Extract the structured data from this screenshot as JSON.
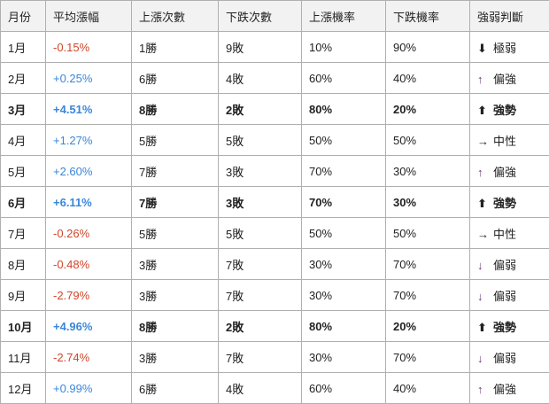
{
  "headers": [
    "月份",
    "平均漲幅",
    "上漲次數",
    "下跌次數",
    "上漲機率",
    "下跌機率",
    "強弱判斷"
  ],
  "colors": {
    "negative": "#d0452a",
    "positive": "#3a87d8",
    "header_bg": "#f2f2f2"
  },
  "rows": [
    {
      "month": "1月",
      "avg": "-0.15%",
      "up": "1勝",
      "down": "9敗",
      "up_rate": "10%",
      "down_rate": "90%",
      "arrow": "⬇",
      "judge": "極弱",
      "bold": false
    },
    {
      "month": "2月",
      "avg": "+0.25%",
      "up": "6勝",
      "down": "4敗",
      "up_rate": "60%",
      "down_rate": "40%",
      "arrow": "↑",
      "judge": "偏強",
      "bold": false
    },
    {
      "month": "3月",
      "avg": "+4.51%",
      "up": "8勝",
      "down": "2敗",
      "up_rate": "80%",
      "down_rate": "20%",
      "arrow": "⬆",
      "judge": "強勢",
      "bold": true
    },
    {
      "month": "4月",
      "avg": "+1.27%",
      "up": "5勝",
      "down": "5敗",
      "up_rate": "50%",
      "down_rate": "50%",
      "arrow": "→",
      "judge": "中性",
      "bold": false
    },
    {
      "month": "5月",
      "avg": "+2.60%",
      "up": "7勝",
      "down": "3敗",
      "up_rate": "70%",
      "down_rate": "30%",
      "arrow": "↑",
      "judge": "偏強",
      "bold": false
    },
    {
      "month": "6月",
      "avg": "+6.11%",
      "up": "7勝",
      "down": "3敗",
      "up_rate": "70%",
      "down_rate": "30%",
      "arrow": "⬆",
      "judge": "強勢",
      "bold": true
    },
    {
      "month": "7月",
      "avg": "-0.26%",
      "up": "5勝",
      "down": "5敗",
      "up_rate": "50%",
      "down_rate": "50%",
      "arrow": "→",
      "judge": "中性",
      "bold": false
    },
    {
      "month": "8月",
      "avg": "-0.48%",
      "up": "3勝",
      "down": "7敗",
      "up_rate": "30%",
      "down_rate": "70%",
      "arrow": "↓",
      "judge": "偏弱",
      "bold": false
    },
    {
      "month": "9月",
      "avg": "-2.79%",
      "up": "3勝",
      "down": "7敗",
      "up_rate": "30%",
      "down_rate": "70%",
      "arrow": "↓",
      "judge": "偏弱",
      "bold": false
    },
    {
      "month": "10月",
      "avg": "+4.96%",
      "up": "8勝",
      "down": "2敗",
      "up_rate": "80%",
      "down_rate": "20%",
      "arrow": "⬆",
      "judge": "強勢",
      "bold": true
    },
    {
      "month": "11月",
      "avg": "-2.74%",
      "up": "3勝",
      "down": "7敗",
      "up_rate": "30%",
      "down_rate": "70%",
      "arrow": "↓",
      "judge": "偏弱",
      "bold": false
    },
    {
      "month": "12月",
      "avg": "+0.99%",
      "up": "6勝",
      "down": "4敗",
      "up_rate": "60%",
      "down_rate": "40%",
      "arrow": "↑",
      "judge": "偏強",
      "bold": false
    }
  ]
}
